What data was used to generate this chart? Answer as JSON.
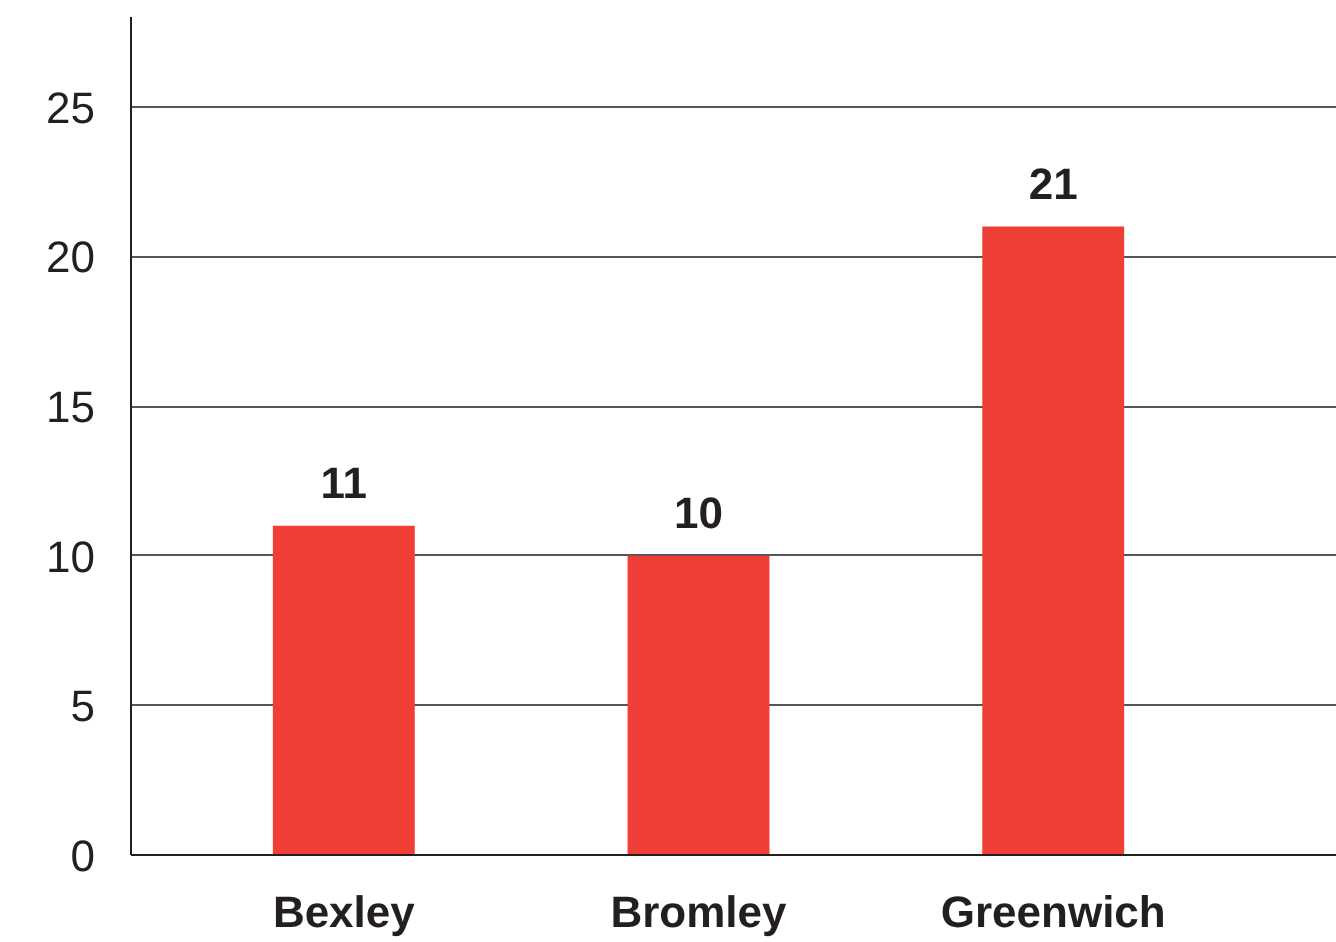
{
  "chart_data": {
    "type": "bar",
    "categories": [
      "Bexley",
      "Bromley",
      "Greenwich"
    ],
    "values": [
      11,
      10,
      21
    ],
    "color": "#ef3e36",
    "ylim": [
      0,
      28
    ],
    "yticks": [
      0,
      5,
      10,
      15,
      20,
      25
    ],
    "grid": "y",
    "data_labels": true
  }
}
